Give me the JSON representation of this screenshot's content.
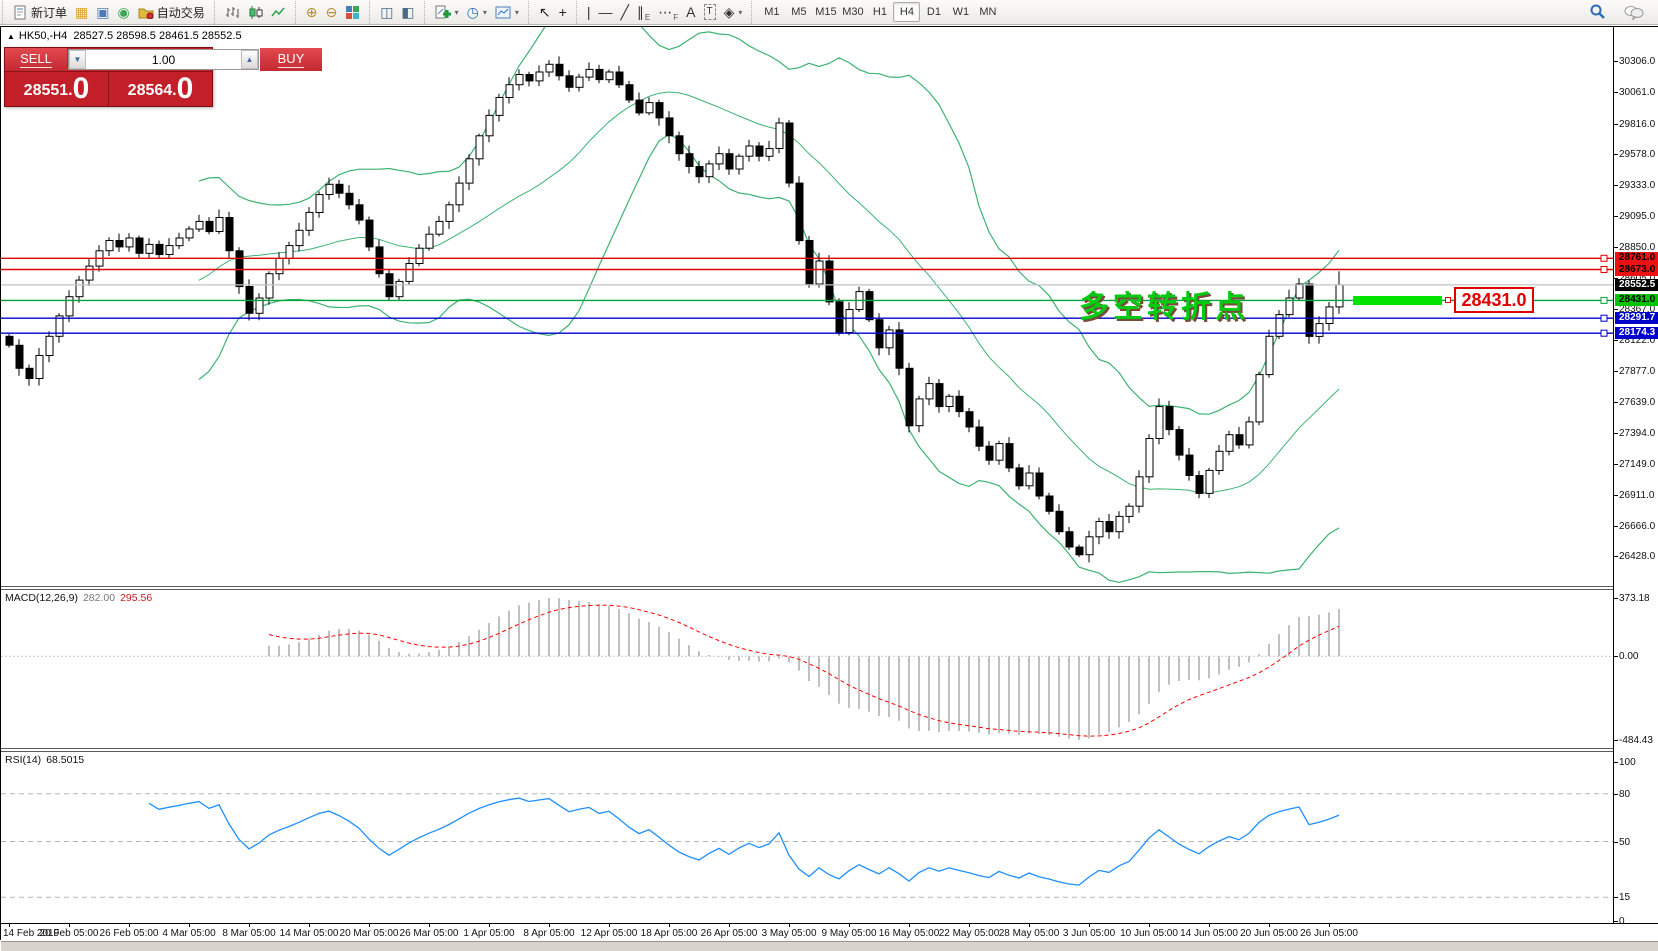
{
  "window": {
    "title_symbol": "HK50,-H4",
    "ohlc": "28527.5 28598.5 28461.5 28552.5"
  },
  "toolbar": {
    "groups": [
      [
        {
          "name": "new-order-button",
          "svg": "form",
          "label": "新订单"
        },
        {
          "name": "market-watch-icon",
          "glyph": "▦",
          "color": "#d9a232"
        },
        {
          "name": "navigator-icon",
          "glyph": "▣",
          "color": "#4a7ebb"
        },
        {
          "name": "signal-icon",
          "glyph": "◉",
          "color": "#3aa655"
        },
        {
          "name": "autotrade-button",
          "svg": "folder",
          "label": "自动交易"
        }
      ],
      [
        {
          "name": "bar-chart-icon",
          "svg": "bars"
        },
        {
          "name": "candlestick-icon",
          "svg": "candles"
        },
        {
          "name": "line-chart-icon",
          "svg": "line"
        }
      ],
      [
        {
          "name": "zoom-in-icon",
          "glyph": "⊕",
          "color": "#b58a2a"
        },
        {
          "name": "zoom-out-icon",
          "glyph": "⊖",
          "color": "#b58a2a"
        },
        {
          "name": "tile-windows-icon",
          "svg": "tile"
        }
      ],
      [
        {
          "name": "arrange-windows-icon",
          "glyph": "◫",
          "color": "#4a6a8a"
        },
        {
          "name": "cascade-windows-icon",
          "glyph": "◧",
          "color": "#4a6a8a"
        }
      ],
      [
        {
          "name": "new-chart-icon",
          "svg": "newchart",
          "dd": true
        },
        {
          "name": "profiles-icon",
          "glyph": "◷",
          "color": "#2a6db5",
          "dd": true
        },
        {
          "name": "indicators-icon",
          "svg": "indicator",
          "dd": true
        }
      ],
      [
        {
          "name": "cursor-icon",
          "glyph": "↖",
          "color": "#222"
        },
        {
          "name": "crosshair-icon",
          "glyph": "+",
          "color": "#222"
        }
      ],
      [
        {
          "name": "vertical-line-icon",
          "glyph": "|",
          "color": "#333"
        },
        {
          "name": "horizontal-line-icon",
          "glyph": "—",
          "color": "#333"
        },
        {
          "name": "trendline-icon",
          "glyph": "╱",
          "color": "#333"
        },
        {
          "name": "equidistant-channel-icon",
          "glyph": "∥",
          "sub": "E",
          "color": "#333"
        },
        {
          "name": "fibonacci-icon",
          "glyph": "⋯",
          "sub": "F",
          "color": "#333"
        },
        {
          "name": "text-icon",
          "glyph": "A",
          "color": "#333"
        },
        {
          "name": "text-label-icon",
          "glyph": "T",
          "color": "#333",
          "boxed": true
        },
        {
          "name": "shapes-icon",
          "glyph": "◈",
          "color": "#333",
          "dd": true
        }
      ]
    ],
    "timeframes": [
      "M1",
      "M5",
      "M15",
      "M30",
      "H1",
      "H4",
      "D1",
      "W1",
      "MN"
    ],
    "selected_timeframe": "H4",
    "right": [
      {
        "name": "search-icon",
        "svg": "search"
      },
      {
        "name": "chat-icon",
        "svg": "chat"
      }
    ]
  },
  "trade_panel": {
    "sell_label": "SELL",
    "buy_label": "BUY",
    "volume": "1.00",
    "sell_price_main": "28551",
    "sell_price_big": "0",
    "buy_price_main": "28564",
    "buy_price_big": "0"
  },
  "annotation": {
    "text": "多空转折点",
    "callout_value": "28431.0"
  },
  "macd_panel": {
    "label": "MACD(12,26,9)",
    "value1": "282.00",
    "value2": "295.56",
    "axis_max": "373.18",
    "axis_zero": "0.00",
    "axis_min": "-484.43"
  },
  "rsi_panel": {
    "label": "RSI(14)",
    "value": "68.5015",
    "axis": [
      "100",
      "80",
      "50",
      "15",
      "0"
    ],
    "levels": [
      80,
      50,
      15
    ]
  },
  "price_axis": {
    "ticks": [
      30306.0,
      30061.0,
      29816.0,
      29578.0,
      29333.0,
      29095.0,
      28850.0,
      28605.0,
      28367.0,
      28122.0,
      27877.0,
      27639.0,
      27394.0,
      27149.0,
      26911.0,
      26666.0,
      26428.0
    ],
    "tags": [
      {
        "value": "28761.0",
        "type": "red"
      },
      {
        "value": "28673.0",
        "type": "red"
      },
      {
        "value": "28552.5",
        "type": "cur"
      },
      {
        "value": "28431.0",
        "type": "green"
      },
      {
        "value": "28291.7",
        "type": "blue"
      },
      {
        "value": "28174.3",
        "type": "blue"
      }
    ]
  },
  "hlines": [
    {
      "price": 28761.0,
      "color": "#e00000"
    },
    {
      "price": 28673.0,
      "color": "#e00000"
    },
    {
      "price": 28431.0,
      "color": "#00a33a"
    },
    {
      "price": 28291.7,
      "color": "#0000cc"
    },
    {
      "price": 28174.3,
      "color": "#0000cc"
    }
  ],
  "current_price": 28552.5,
  "chart_data": {
    "type": "candlestick",
    "symbol": "HK50",
    "timeframe": "H4",
    "title": "HK50,-H4 28527.5 28598.5 28461.5 28552.5",
    "first_open": 28150,
    "closes": [
      28080,
      27900,
      27820,
      28000,
      28150,
      28310,
      28460,
      28590,
      28700,
      28820,
      28900,
      28850,
      28920,
      28800,
      28870,
      28790,
      28860,
      28920,
      28990,
      29050,
      28970,
      29080,
      28820,
      28540,
      28330,
      28450,
      28640,
      28760,
      28860,
      28980,
      29120,
      29260,
      29340,
      29270,
      29180,
      29060,
      28850,
      28640,
      28460,
      28580,
      28720,
      28840,
      28950,
      29050,
      29180,
      29350,
      29540,
      29720,
      29880,
      30020,
      30120,
      30200,
      30150,
      30220,
      30280,
      30190,
      30100,
      30180,
      30240,
      30160,
      30220,
      30120,
      30000,
      29900,
      29980,
      29860,
      29720,
      29580,
      29480,
      29400,
      29500,
      29580,
      29460,
      29560,
      29640,
      29560,
      29620,
      29820,
      29350,
      28900,
      28560,
      28740,
      28420,
      28180,
      28360,
      28500,
      28280,
      28060,
      28200,
      27900,
      27450,
      27660,
      27780,
      27600,
      27680,
      27560,
      27440,
      27290,
      27180,
      27310,
      27120,
      26980,
      27080,
      26900,
      26780,
      26620,
      26500,
      26440,
      26580,
      26700,
      26620,
      26740,
      26820,
      27050,
      27350,
      27600,
      27420,
      27220,
      27060,
      26920,
      27100,
      27250,
      27380,
      27300,
      27480,
      27850,
      28150,
      28320,
      28450,
      28560,
      28150,
      28250,
      28380,
      28552.5
    ],
    "last_close": 28552.5,
    "x_labels": [
      "14 Feb 2019",
      "20 Feb 05:00",
      "26 Feb 05:00",
      "4 Mar 05:00",
      "8 Mar 05:00",
      "14 Mar 05:00",
      "20 Mar 05:00",
      "26 Mar 05:00",
      "1 Apr 05:00",
      "8 Apr 05:00",
      "12 Apr 05:00",
      "18 Apr 05:00",
      "26 Apr 05:00",
      "3 May 05:00",
      "9 May 05:00",
      "16 May 05:00",
      "22 May 05:00",
      "28 May 05:00",
      "3 Jun 05:00",
      "10 Jun 05:00",
      "14 Jun 05:00",
      "20 Jun 05:00",
      "26 Jun 05:00"
    ],
    "candles_per_label": 6,
    "y_axis_range": [
      26428.0,
      30306.0
    ],
    "overlays": [
      {
        "type": "bollinger_bands",
        "period": 20,
        "deviation": 2,
        "color": "#3cb371"
      }
    ],
    "indicators": [
      {
        "type": "MACD",
        "params": [
          12,
          26,
          9
        ],
        "current_values": [
          282.0,
          295.56
        ],
        "axis": [
          373.18,
          0.0,
          -484.43
        ]
      },
      {
        "type": "RSI",
        "params": [
          14
        ],
        "current_value": 68.5015,
        "axis": [
          0,
          100
        ],
        "levels": [
          15,
          50,
          80
        ]
      }
    ],
    "horizontal_lines": [
      28761.0,
      28673.0,
      28431.0,
      28291.7,
      28174.3
    ],
    "current_price": 28552.5
  }
}
